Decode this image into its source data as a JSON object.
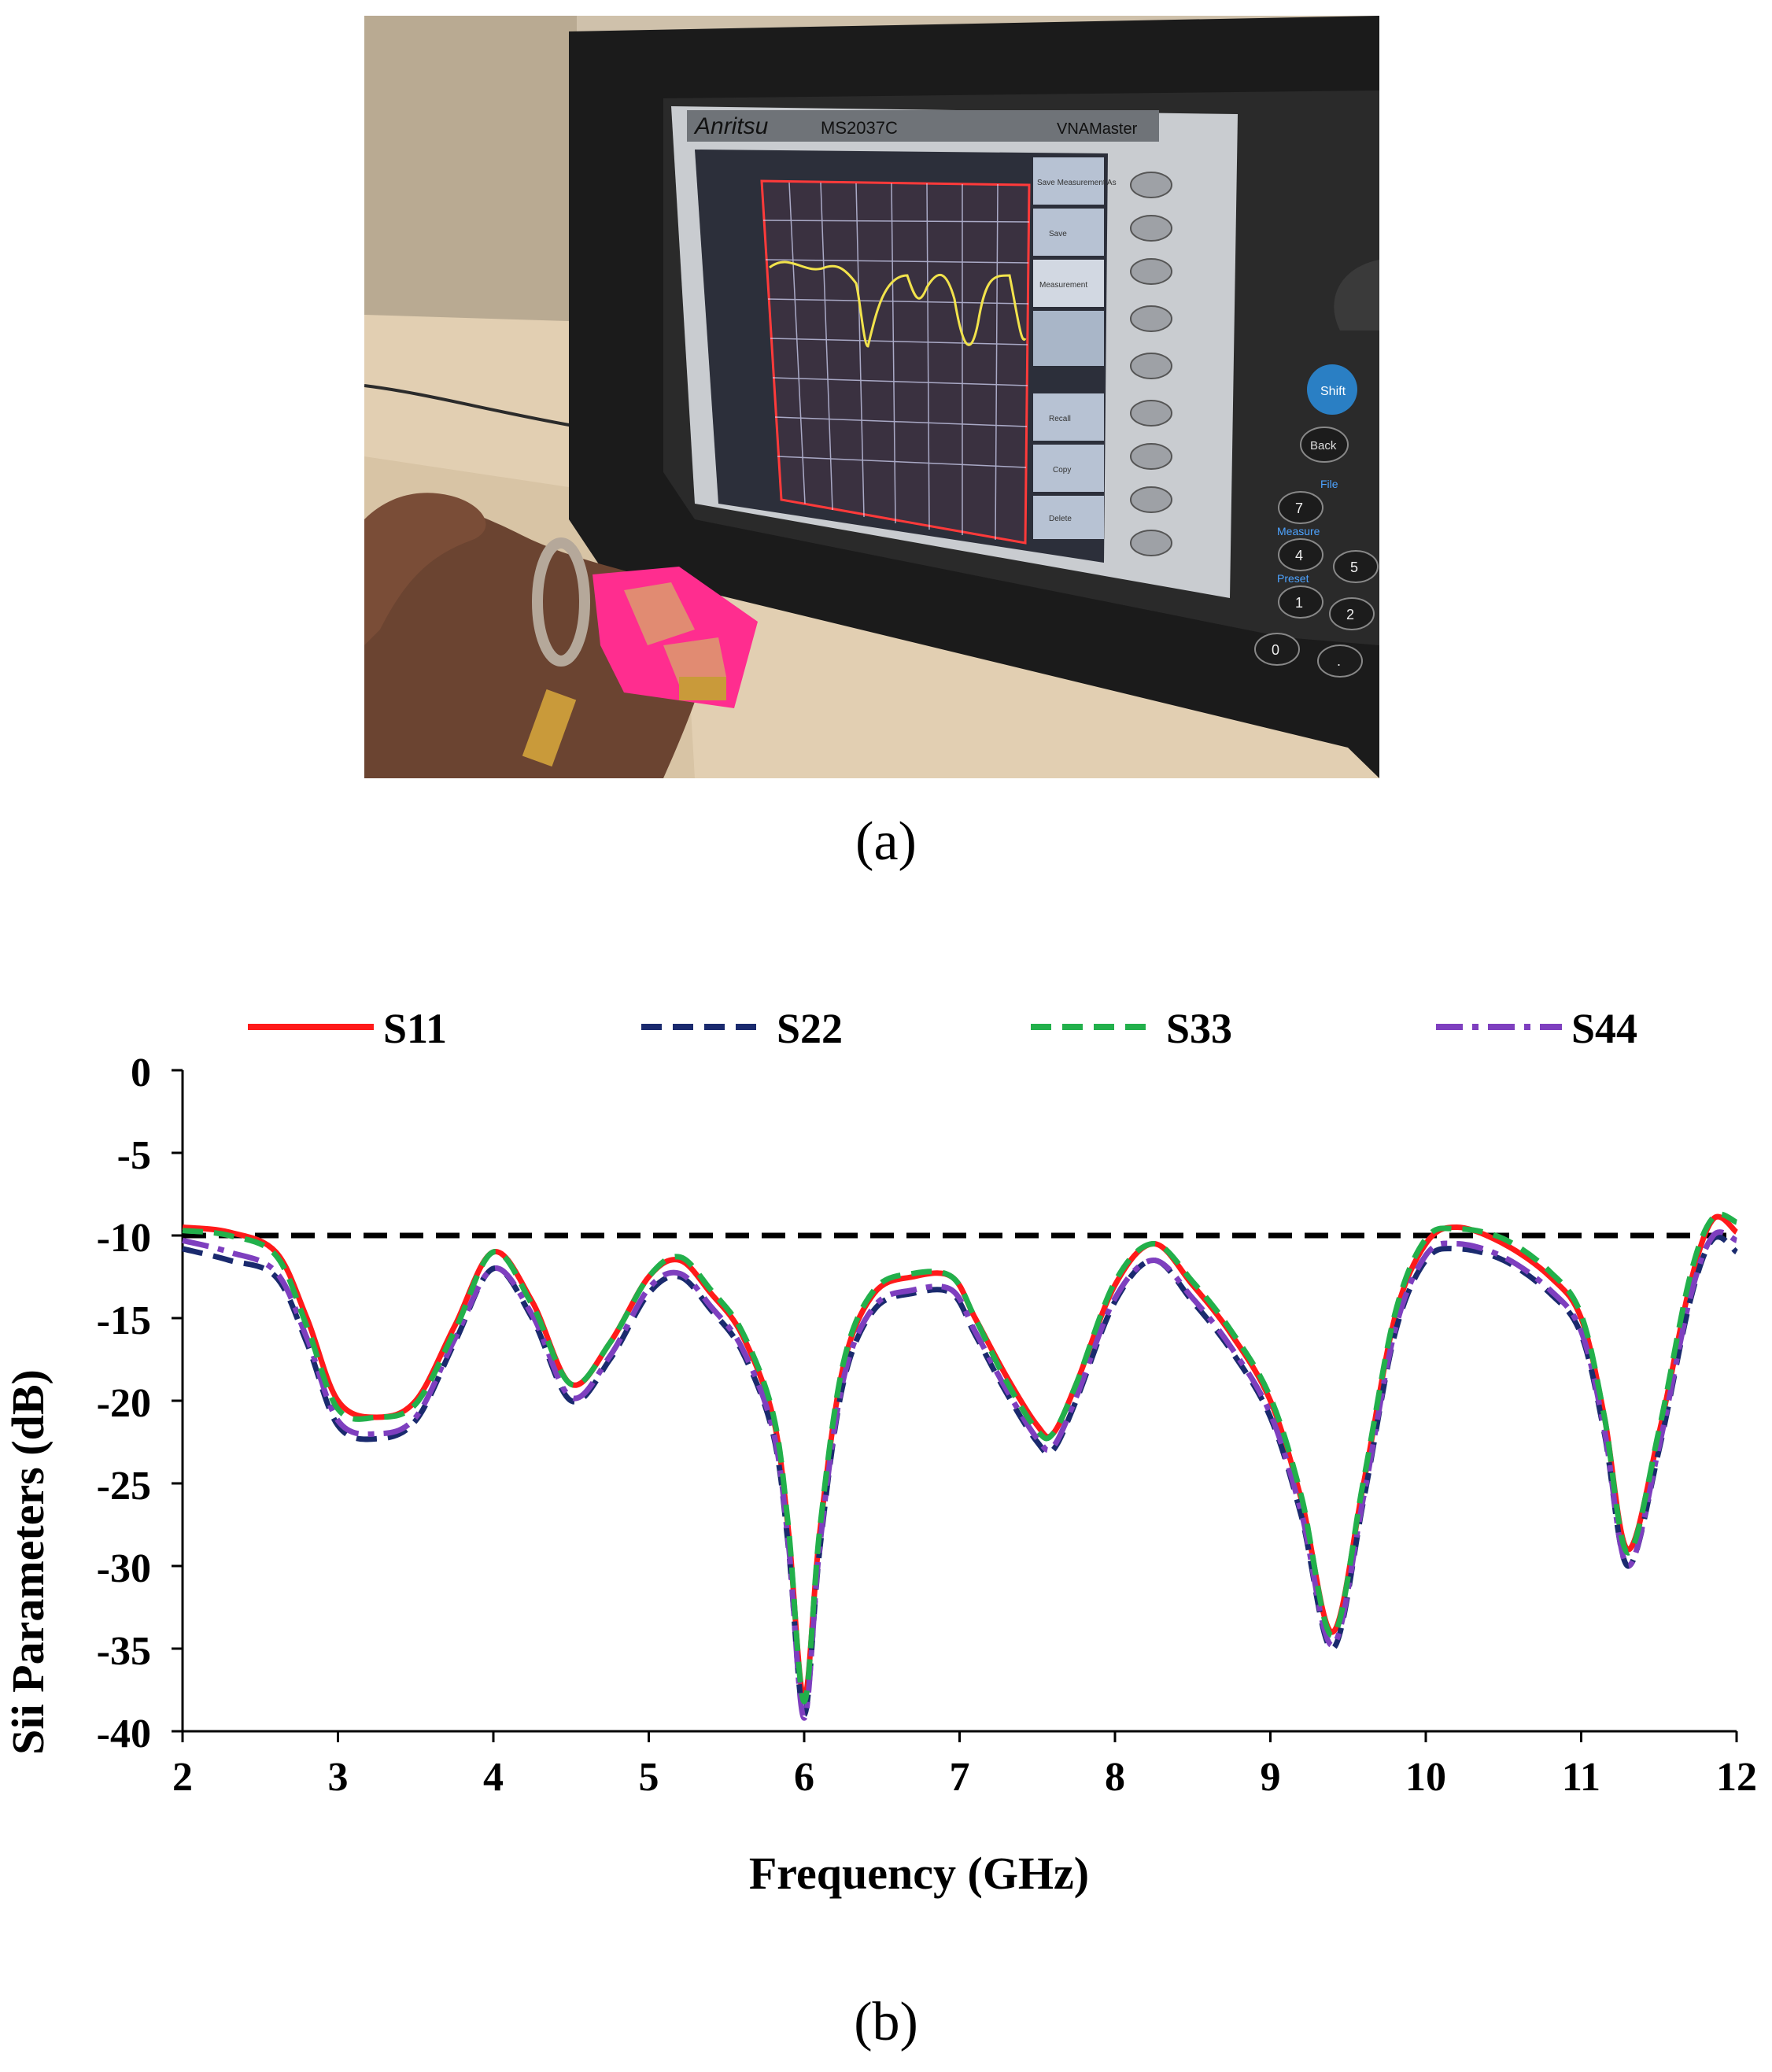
{
  "photo": {
    "device_brand": "Anritsu",
    "device_model": "MS2037C",
    "device_series": "VNAMaster",
    "softkeys": [
      "Save Measurement As",
      "Save",
      "Measurement",
      "Recall",
      "Copy",
      "Delete"
    ],
    "keypad_labels": [
      "Shift",
      "Back",
      "File",
      "Measure",
      "Preset",
      "7",
      "4",
      "1",
      "0",
      "2",
      "5",
      "."
    ]
  },
  "captions": {
    "a": "(a)",
    "b": "(b)"
  },
  "chart_data": {
    "type": "line",
    "title": "",
    "xlabel": "Frequency (GHz)",
    "ylabel": "Sii Parameters (dB)",
    "xlim": [
      2,
      12
    ],
    "ylim": [
      -40,
      0
    ],
    "xticks": [
      "2",
      "3",
      "4",
      "5",
      "6",
      "7",
      "8",
      "9",
      "10",
      "11",
      "12"
    ],
    "yticks": [
      "0",
      "-5",
      "-10",
      "-15",
      "-20",
      "-25",
      "-30",
      "-35",
      "-40"
    ],
    "reference_line": {
      "y": -10,
      "color": "#000000",
      "style": "dashed"
    },
    "legend_position": "top",
    "series": [
      {
        "name": "S11",
        "color": "#ff1a1a",
        "style": "solid",
        "x": [
          2.0,
          2.3,
          2.6,
          2.8,
          3.0,
          3.25,
          3.5,
          3.75,
          4.0,
          4.25,
          4.5,
          4.75,
          5.0,
          5.2,
          5.4,
          5.6,
          5.8,
          5.9,
          6.0,
          6.1,
          6.25,
          6.45,
          6.7,
          6.95,
          7.1,
          7.3,
          7.5,
          7.6,
          7.75,
          8.0,
          8.25,
          8.5,
          8.75,
          9.0,
          9.2,
          9.4,
          9.6,
          9.8,
          10.0,
          10.2,
          10.5,
          10.8,
          11.0,
          11.15,
          11.3,
          11.5,
          11.7,
          11.85,
          12.0
        ],
        "y": [
          -9.5,
          -9.8,
          -11.0,
          -15.0,
          -20.0,
          -21.0,
          -20.0,
          -15.5,
          -11.0,
          -14.0,
          -19.0,
          -16.5,
          -12.5,
          -11.5,
          -13.5,
          -16.0,
          -21.0,
          -28.0,
          -38.0,
          -28.0,
          -18.0,
          -13.5,
          -12.5,
          -12.5,
          -15.0,
          -18.5,
          -21.5,
          -22.0,
          -19.0,
          -13.0,
          -10.5,
          -13.0,
          -16.0,
          -20.0,
          -26.0,
          -34.0,
          -25.0,
          -15.0,
          -10.5,
          -9.5,
          -10.5,
          -12.5,
          -15.0,
          -21.0,
          -29.0,
          -22.0,
          -13.0,
          -9.0,
          -9.8
        ]
      },
      {
        "name": "S22",
        "color": "#1a2a6e",
        "style": "dashed",
        "x": [
          2.0,
          2.3,
          2.6,
          2.8,
          3.0,
          3.25,
          3.5,
          3.75,
          4.0,
          4.25,
          4.5,
          4.75,
          5.0,
          5.2,
          5.4,
          5.6,
          5.8,
          5.9,
          6.0,
          6.1,
          6.25,
          6.45,
          6.7,
          6.95,
          7.1,
          7.3,
          7.5,
          7.6,
          7.75,
          8.0,
          8.25,
          8.5,
          8.75,
          9.0,
          9.2,
          9.4,
          9.6,
          9.8,
          10.0,
          10.2,
          10.5,
          10.8,
          11.0,
          11.15,
          11.3,
          11.5,
          11.7,
          11.85,
          12.0
        ],
        "y": [
          -10.8,
          -11.5,
          -12.5,
          -16.5,
          -21.5,
          -22.3,
          -21.2,
          -16.5,
          -12.0,
          -15.0,
          -20.0,
          -17.5,
          -13.5,
          -12.5,
          -14.5,
          -17.0,
          -22.0,
          -29.0,
          -39.0,
          -29.0,
          -19.0,
          -14.5,
          -13.5,
          -13.5,
          -16.0,
          -19.5,
          -22.5,
          -23.0,
          -20.0,
          -14.0,
          -11.5,
          -14.0,
          -17.0,
          -21.0,
          -27.0,
          -35.0,
          -26.0,
          -16.0,
          -11.5,
          -10.8,
          -11.5,
          -13.5,
          -16.0,
          -22.0,
          -30.0,
          -23.0,
          -14.0,
          -10.2,
          -11.0
        ]
      },
      {
        "name": "S33",
        "color": "#22b04b",
        "style": "dashed",
        "x": [
          2.0,
          2.3,
          2.6,
          2.8,
          3.0,
          3.25,
          3.5,
          3.75,
          4.0,
          4.25,
          4.5,
          4.75,
          5.0,
          5.2,
          5.4,
          5.6,
          5.8,
          5.9,
          6.0,
          6.1,
          6.25,
          6.45,
          6.7,
          6.95,
          7.1,
          7.3,
          7.5,
          7.6,
          7.75,
          8.0,
          8.25,
          8.5,
          8.75,
          9.0,
          9.2,
          9.4,
          9.6,
          9.8,
          10.0,
          10.2,
          10.5,
          10.8,
          11.0,
          11.15,
          11.3,
          11.5,
          11.7,
          11.85,
          12.0
        ],
        "y": [
          -9.7,
          -10.0,
          -11.2,
          -15.5,
          -20.5,
          -21.0,
          -20.2,
          -15.8,
          -11.0,
          -14.2,
          -19.0,
          -16.5,
          -12.5,
          -11.3,
          -13.3,
          -15.8,
          -20.8,
          -27.8,
          -38.2,
          -27.8,
          -17.8,
          -13.3,
          -12.3,
          -12.5,
          -15.0,
          -18.8,
          -21.8,
          -22.0,
          -19.0,
          -12.8,
          -10.5,
          -12.8,
          -15.8,
          -19.8,
          -25.8,
          -34.2,
          -24.8,
          -14.8,
          -10.2,
          -9.6,
          -10.2,
          -12.2,
          -14.8,
          -21.0,
          -29.2,
          -21.8,
          -12.5,
          -8.9,
          -9.2
        ]
      },
      {
        "name": "S44",
        "color": "#7e3fbf",
        "style": "dashdot",
        "x": [
          2.0,
          2.3,
          2.6,
          2.8,
          3.0,
          3.25,
          3.5,
          3.75,
          4.0,
          4.25,
          4.5,
          4.75,
          5.0,
          5.2,
          5.4,
          5.6,
          5.8,
          5.9,
          6.0,
          6.1,
          6.25,
          6.45,
          6.7,
          6.95,
          7.1,
          7.3,
          7.5,
          7.6,
          7.75,
          8.0,
          8.25,
          8.5,
          8.75,
          9.0,
          9.2,
          9.4,
          9.6,
          9.8,
          10.0,
          10.2,
          10.5,
          10.8,
          11.0,
          11.15,
          11.3,
          11.5,
          11.7,
          11.85,
          12.0
        ],
        "y": [
          -10.3,
          -11.0,
          -12.2,
          -16.2,
          -21.2,
          -22.0,
          -21.0,
          -16.3,
          -12.0,
          -14.8,
          -19.8,
          -17.3,
          -13.2,
          -12.3,
          -14.3,
          -16.8,
          -21.8,
          -28.8,
          -39.2,
          -28.8,
          -18.8,
          -14.3,
          -13.3,
          -13.3,
          -15.8,
          -19.3,
          -22.3,
          -22.8,
          -19.8,
          -13.8,
          -11.5,
          -13.8,
          -16.8,
          -20.8,
          -26.8,
          -34.8,
          -25.8,
          -15.8,
          -11.2,
          -10.5,
          -11.3,
          -13.3,
          -15.8,
          -21.8,
          -30.0,
          -22.8,
          -13.8,
          -10.0,
          -10.3
        ]
      }
    ]
  }
}
